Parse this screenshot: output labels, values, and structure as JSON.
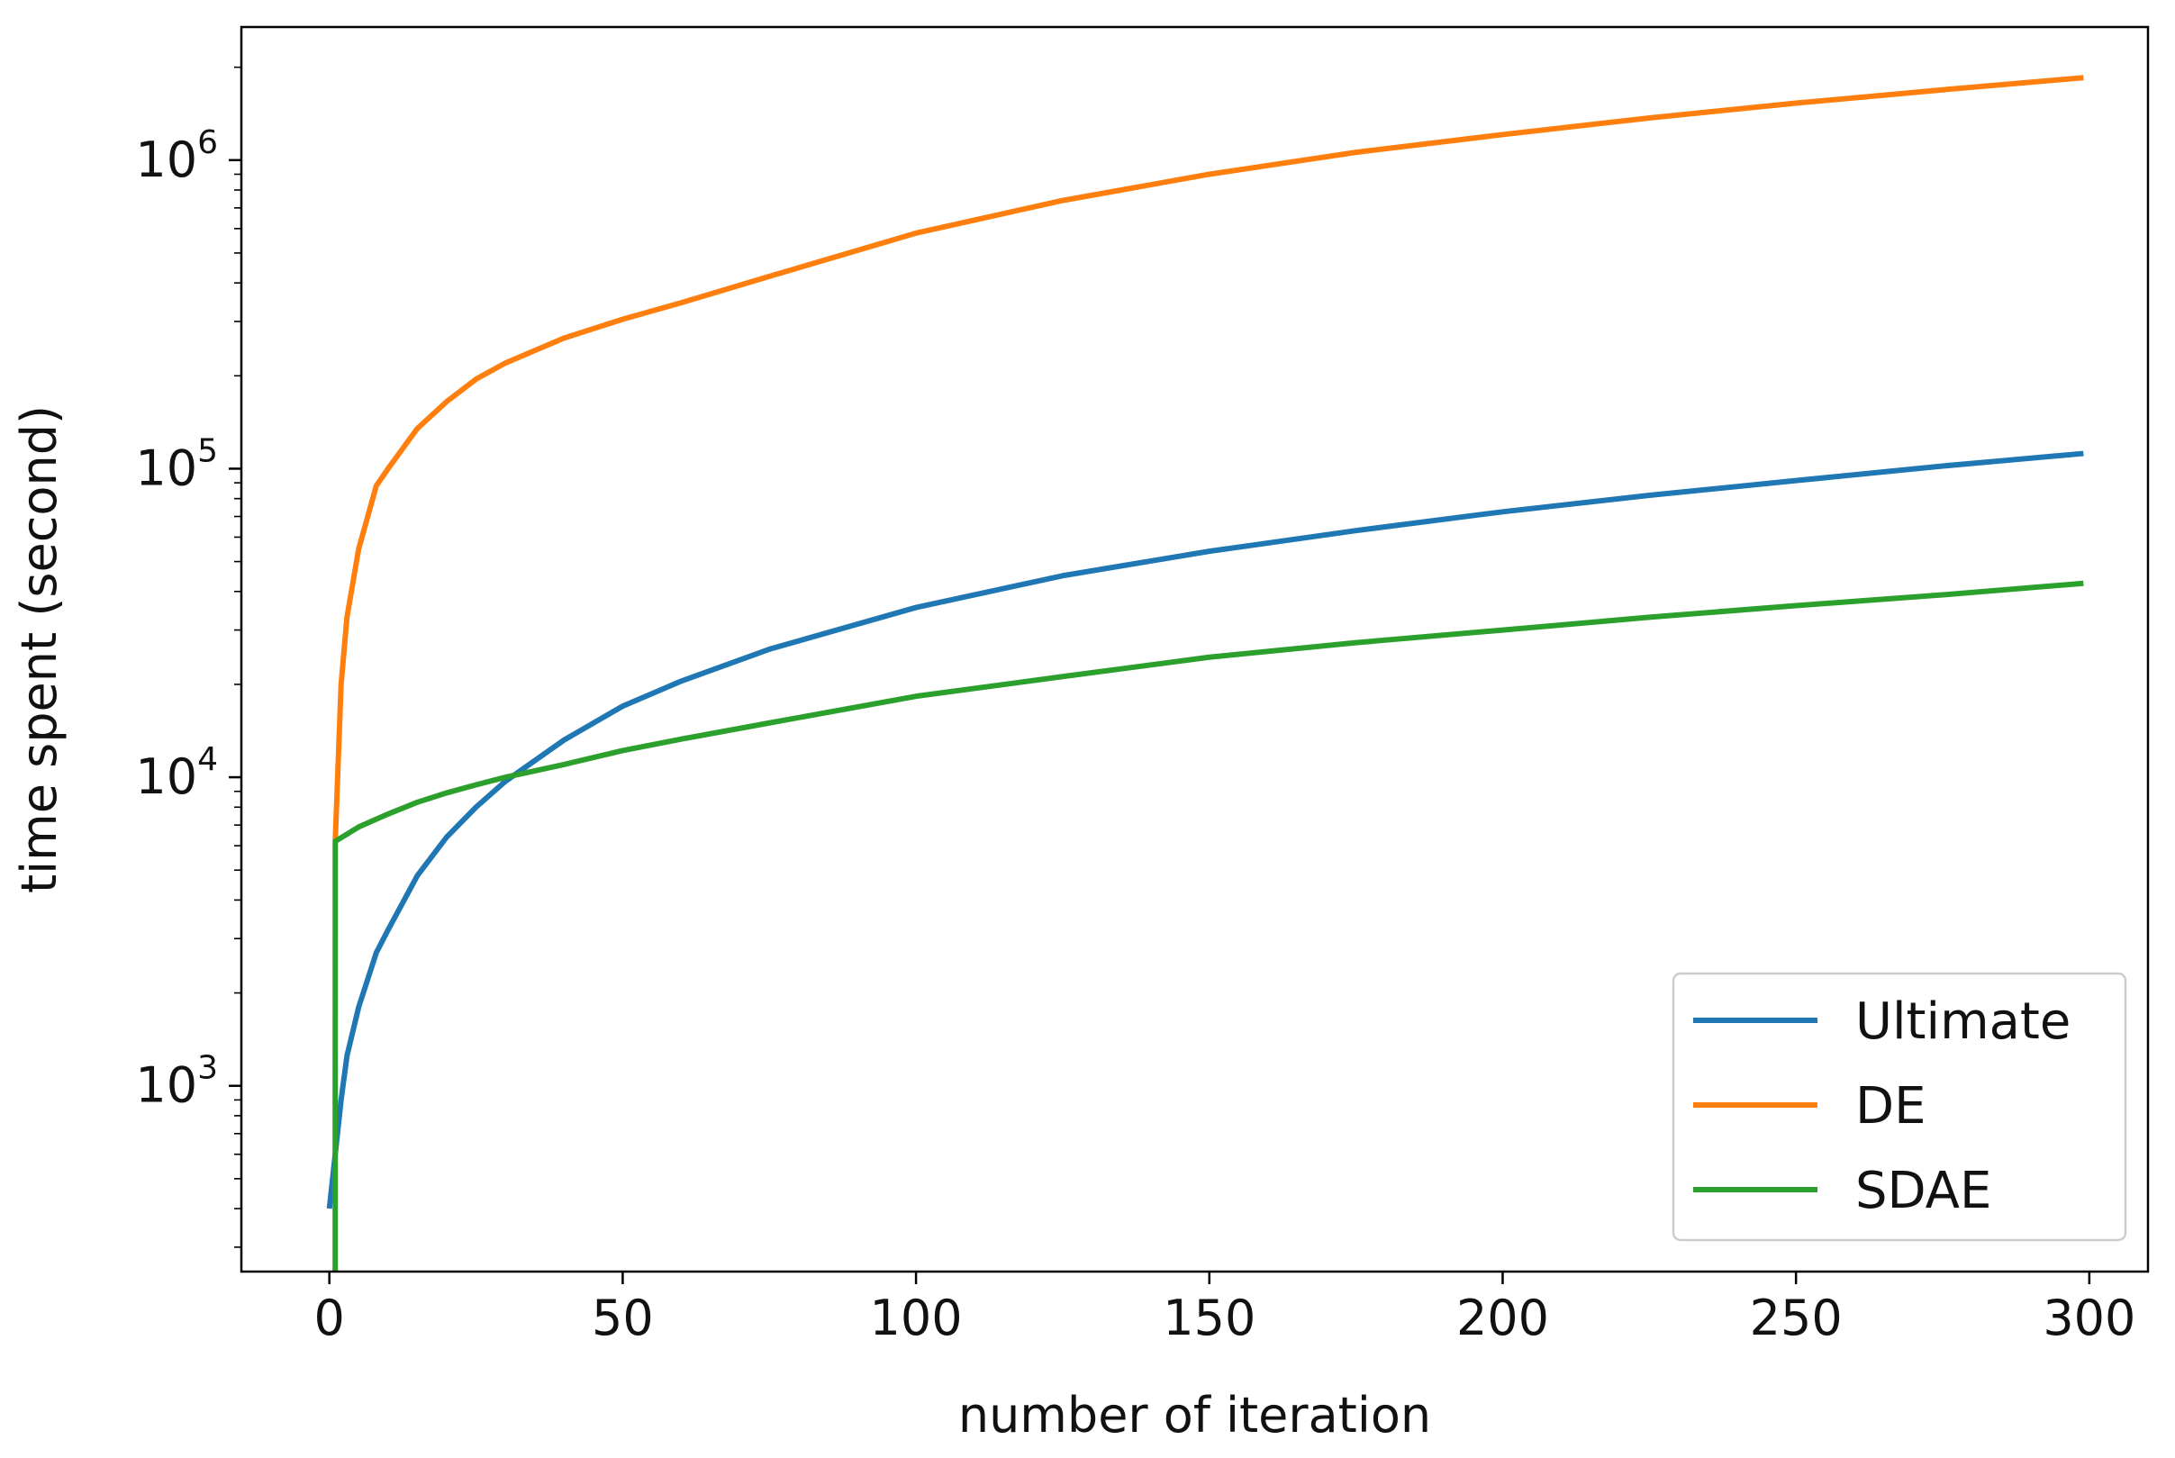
{
  "chart_data": {
    "type": "line",
    "title": "",
    "xlabel": "number of iteration",
    "ylabel": "time spent (second)",
    "y_scale": "log",
    "xlim": [
      -15,
      310
    ],
    "ylim": [
      250,
      2700000
    ],
    "x_ticks": [
      0,
      50,
      100,
      150,
      200,
      250,
      300
    ],
    "y_ticks": [
      {
        "value": 1000,
        "base": "10",
        "exp": "3"
      },
      {
        "value": 10000,
        "base": "10",
        "exp": "4"
      },
      {
        "value": 100000,
        "base": "10",
        "exp": "5"
      },
      {
        "value": 1000000,
        "base": "10",
        "exp": "6"
      }
    ],
    "grid": false,
    "legend_position": "lower right",
    "series": [
      {
        "name": "Ultimate",
        "color": "#1f77b4",
        "x": [
          0,
          1,
          2,
          3,
          5,
          8,
          10,
          15,
          20,
          25,
          30,
          40,
          50,
          60,
          75,
          100,
          125,
          150,
          175,
          200,
          225,
          250,
          275,
          299
        ],
        "y": [
          400,
          600,
          900,
          1250,
          1800,
          2700,
          3200,
          4800,
          6400,
          8000,
          9700,
          13200,
          17000,
          20500,
          26000,
          35500,
          45000,
          54000,
          63000,
          72500,
          82000,
          91500,
          102000,
          112000
        ]
      },
      {
        "name": "DE",
        "color": "#ff7f0e",
        "x": [
          1,
          2,
          3,
          5,
          8,
          10,
          15,
          20,
          25,
          30,
          40,
          50,
          60,
          75,
          100,
          125,
          150,
          175,
          200,
          225,
          250,
          275,
          299
        ],
        "y": [
          6200,
          20000,
          33000,
          55000,
          88000,
          100000,
          135000,
          165000,
          195000,
          220000,
          265000,
          305000,
          345000,
          420000,
          580000,
          740000,
          900000,
          1060000,
          1210000,
          1370000,
          1530000,
          1690000,
          1850000
        ]
      },
      {
        "name": "SDAE",
        "color": "#2ca02c",
        "x": [
          1,
          1,
          1.01,
          5,
          10,
          15,
          20,
          25,
          30,
          40,
          50,
          60,
          75,
          100,
          125,
          150,
          175,
          200,
          225,
          250,
          275,
          299
        ],
        "y": [
          250,
          1000,
          6200,
          6900,
          7600,
          8300,
          8900,
          9450,
          10000,
          11000,
          12200,
          13300,
          15000,
          18300,
          21200,
          24500,
          27300,
          30000,
          33000,
          36000,
          39000,
          42500
        ]
      }
    ]
  }
}
